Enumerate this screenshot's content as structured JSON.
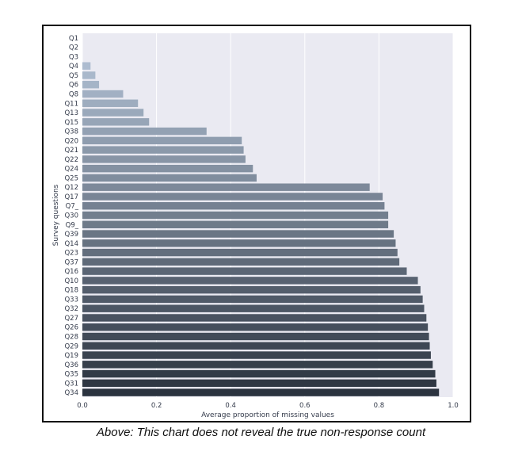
{
  "caption": "Above: This chart does not reveal the true non-response count",
  "chart_data": {
    "type": "bar",
    "orientation": "horizontal",
    "xlabel": "Average proportion of missing values",
    "ylabel": "Survey questions",
    "xlim": [
      0.0,
      1.0
    ],
    "xticks": [
      "0.0",
      "0.2",
      "0.4",
      "0.6",
      "0.8",
      "1.0"
    ],
    "grid": true,
    "categories": [
      "Q1",
      "Q2",
      "Q3",
      "Q4",
      "Q5",
      "Q6",
      "Q8",
      "Q11",
      "Q13",
      "Q15",
      "Q38",
      "Q20",
      "Q21",
      "Q22",
      "Q24",
      "Q25",
      "Q12",
      "Q17",
      "Q7_",
      "Q30",
      "Q9_",
      "Q39",
      "Q14",
      "Q23",
      "Q37",
      "Q16",
      "Q10",
      "Q18",
      "Q33",
      "Q32",
      "Q27",
      "Q26",
      "Q28",
      "Q29",
      "Q19",
      "Q36",
      "Q35",
      "Q31",
      "Q34"
    ],
    "values": [
      0.0,
      0.0,
      0.0,
      0.022,
      0.035,
      0.045,
      0.11,
      0.15,
      0.165,
      0.18,
      0.335,
      0.43,
      0.435,
      0.44,
      0.46,
      0.47,
      0.775,
      0.81,
      0.815,
      0.825,
      0.825,
      0.84,
      0.845,
      0.85,
      0.855,
      0.875,
      0.905,
      0.912,
      0.918,
      0.922,
      0.928,
      0.932,
      0.935,
      0.937,
      0.94,
      0.945,
      0.952,
      0.955,
      0.962
    ],
    "colors": {
      "background": "#eaeaf2",
      "gridline": "#ffffff",
      "bar_light": "#b8c8dc",
      "bar_dark": "#2b333f"
    }
  }
}
